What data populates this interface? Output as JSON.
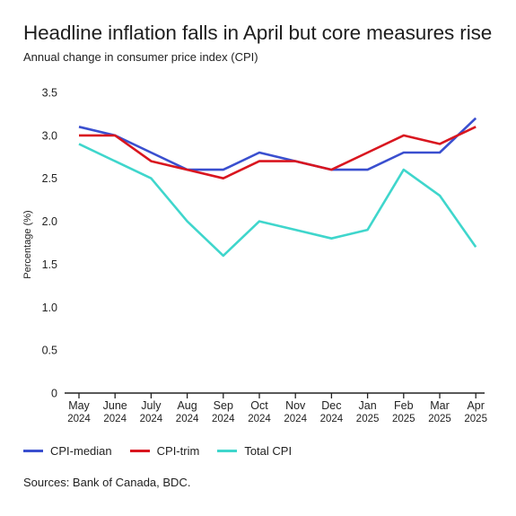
{
  "chart_data": {
    "type": "line",
    "title": "Headline inflation falls in April but core measures rise",
    "subtitle": "Annual change in consumer price index (CPI)",
    "ylabel": "Percentage (%)",
    "xlabel": "",
    "ylim": [
      0,
      3.5
    ],
    "yticks": [
      "0",
      "0.5",
      "1.0",
      "1.5",
      "2.0",
      "2.5",
      "3.0",
      "3.5"
    ],
    "categories": [
      [
        "May",
        "2024"
      ],
      [
        "June",
        "2024"
      ],
      [
        "July",
        "2024"
      ],
      [
        "Aug",
        "2024"
      ],
      [
        "Sep",
        "2024"
      ],
      [
        "Oct",
        "2024"
      ],
      [
        "Nov",
        "2024"
      ],
      [
        "Dec",
        "2024"
      ],
      [
        "Jan",
        "2025"
      ],
      [
        "Feb",
        "2025"
      ],
      [
        "Mar",
        "2025"
      ],
      [
        "Apr",
        "2025"
      ]
    ],
    "series": [
      {
        "name": "CPI-median",
        "color": "#3a4fcf",
        "values": [
          3.1,
          3.0,
          2.8,
          2.6,
          2.6,
          2.8,
          2.7,
          2.6,
          2.6,
          2.8,
          2.8,
          3.2
        ]
      },
      {
        "name": "CPI-trim",
        "color": "#d9161f",
        "values": [
          3.0,
          3.0,
          2.7,
          2.6,
          2.5,
          2.7,
          2.7,
          2.6,
          2.8,
          3.0,
          2.9,
          3.1
        ]
      },
      {
        "name": "Total CPI",
        "color": "#3fd6cc",
        "values": [
          2.9,
          2.7,
          2.5,
          2.0,
          1.6,
          2.0,
          1.9,
          1.8,
          1.9,
          2.6,
          2.3,
          1.7
        ]
      }
    ],
    "grid": false,
    "legend_position": "bottom-left"
  },
  "source": "Sources: Bank of Canada, BDC."
}
